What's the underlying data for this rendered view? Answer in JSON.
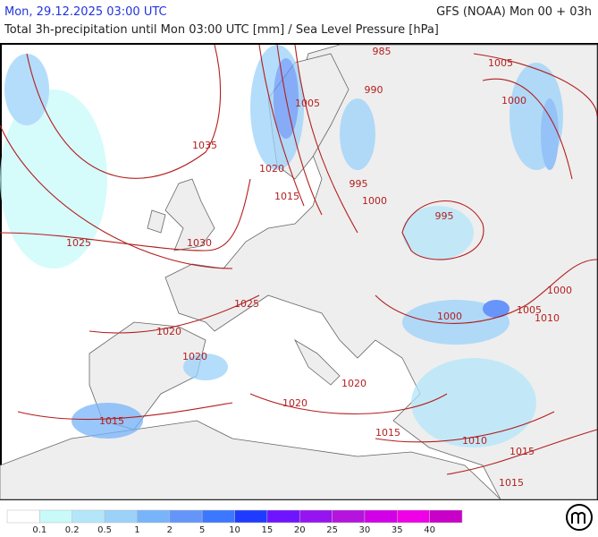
{
  "header": {
    "datetime": "Mon, 29.12.2025 03:00 UTC",
    "model": "GFS (NOAA) Mon 00 + 03h",
    "description": "Total 3h-precipitation until Mon 03:00 UTC [mm] / Sea Level Pressure [hPa]"
  },
  "map": {
    "isobar_labels": [
      "985",
      "1005",
      "990",
      "1000",
      "1005",
      "1035",
      "1020",
      "995",
      "1015",
      "1000",
      "995",
      "1025",
      "1030",
      "1000",
      "1025",
      "1005",
      "1010",
      "1000",
      "1020",
      "1020",
      "1020",
      "1020",
      "1015",
      "1015",
      "1010",
      "1015",
      "1015"
    ],
    "isobar_color": "#b41e1e"
  },
  "legend": {
    "colors": [
      "#ffffff",
      "#c8fafa",
      "#b4e6fa",
      "#9bd2fa",
      "#78b4fa",
      "#6496fa",
      "#3c78ff",
      "#1e3cff",
      "#6e14ff",
      "#9614f0",
      "#b414dc",
      "#d200e6",
      "#f000e6",
      "#c800c8"
    ],
    "boundaries": [
      "0.1",
      "0.2",
      "0.5",
      "1",
      "2",
      "5",
      "10",
      "15",
      "20",
      "25",
      "30",
      "35",
      "40"
    ]
  }
}
